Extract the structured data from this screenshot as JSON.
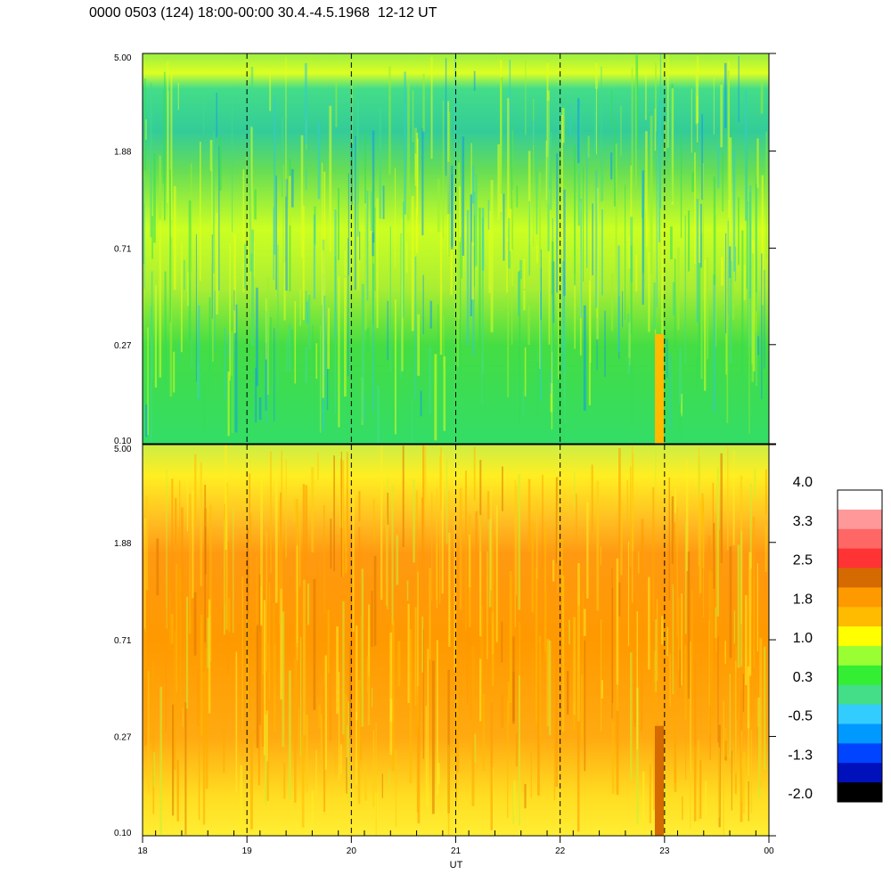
{
  "title": "0000 0503 (124) 18:00-00:00 30.4.-4.5.1968  12-12 UT",
  "chart_data": [
    {
      "type": "heatmap",
      "panel": "top",
      "x_ticks": [
        "18",
        "19",
        "20",
        "21",
        "22",
        "23",
        "00"
      ],
      "x_range": [
        18,
        24
      ],
      "y_ticks": [
        "5.00",
        "1.88",
        "0.71",
        "0.27",
        "0.10"
      ],
      "y_scale": "log",
      "y_range": [
        0.1,
        5.0
      ],
      "dashed_lines_at_x": [
        19,
        20,
        21,
        22,
        23
      ],
      "dominant_values_by_y": [
        {
          "y": "5.00",
          "value": 0.3
        },
        {
          "y": "1.88",
          "value": 0.3
        },
        {
          "y": "0.71",
          "value": 1.0
        },
        {
          "y": "0.27",
          "value": 0.3
        },
        {
          "y": "0.10",
          "value": 0.3
        }
      ],
      "features": [
        {
          "x": 22.95,
          "y_from": 0.1,
          "y_to": 0.3,
          "value": 1.8
        }
      ]
    },
    {
      "type": "heatmap",
      "panel": "bottom",
      "x_ticks": [
        "18",
        "19",
        "20",
        "21",
        "22",
        "23",
        "00"
      ],
      "x_range": [
        18,
        24
      ],
      "xlabel": "UT",
      "y_ticks": [
        "5.00",
        "1.88",
        "0.71",
        "0.27",
        "0.10"
      ],
      "y_scale": "log",
      "y_range": [
        0.1,
        5.0
      ],
      "dashed_lines_at_x": [
        19,
        20,
        21,
        22,
        23
      ],
      "dominant_values_by_y": [
        {
          "y": "5.00",
          "value": 1.0
        },
        {
          "y": "1.88",
          "value": 1.8
        },
        {
          "y": "0.71",
          "value": 1.8
        },
        {
          "y": "0.27",
          "value": 1.8
        },
        {
          "y": "0.10",
          "value": 1.0
        }
      ],
      "features": [
        {
          "x": 22.95,
          "y_from": 0.1,
          "y_to": 0.3,
          "value": 2.5
        }
      ]
    }
  ],
  "colorbar": {
    "tick_labels": [
      "4.0",
      "3.3",
      "2.5",
      "1.8",
      "1.0",
      "0.3",
      "-0.5",
      "-1.3",
      "-2.0"
    ],
    "colors": [
      "#ffffff",
      "#ff9999",
      "#ff6666",
      "#ff3333",
      "#d46a00",
      "#ff9900",
      "#ffbb00",
      "#ffff00",
      "#99ff33",
      "#33ee33",
      "#44dd88",
      "#33ccff",
      "#0099ff",
      "#0044ff",
      "#0011bb",
      "#000000"
    ]
  }
}
